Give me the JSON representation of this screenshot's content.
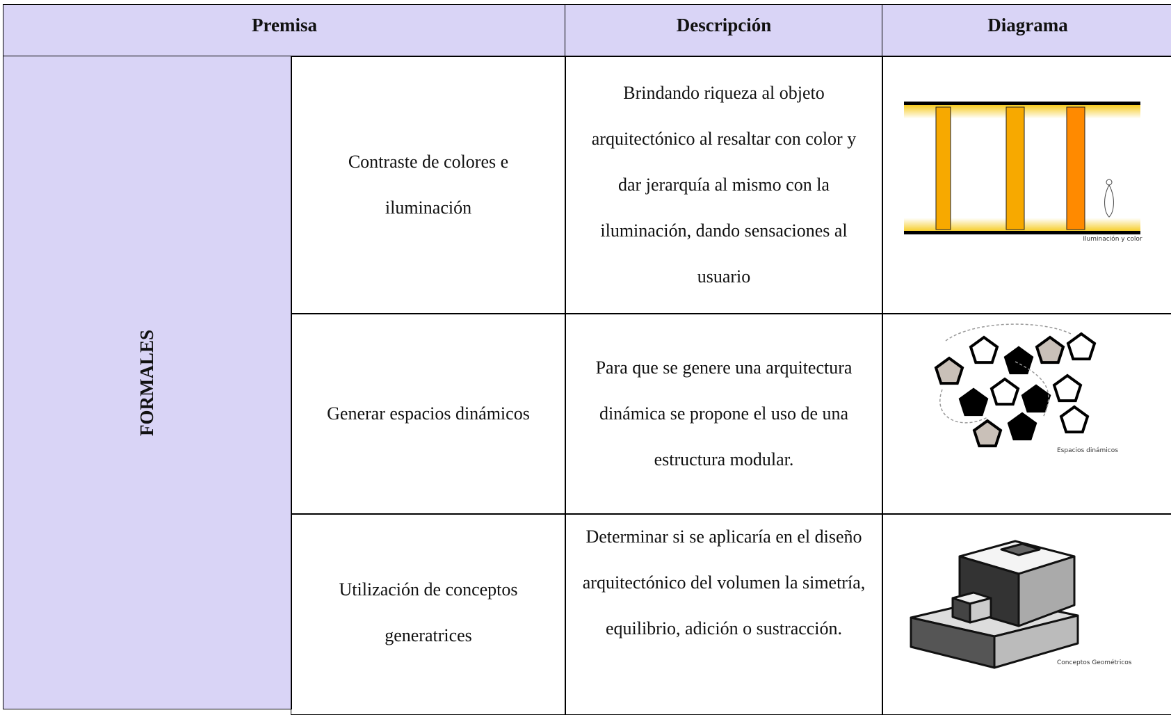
{
  "table": {
    "header": [
      "Premisa",
      "Descripción",
      "Diagrama"
    ],
    "group": "FORMALES",
    "rows": [
      [
        "Contraste de colores e iluminación",
        "Brindando riqueza al objeto arquitectónico al resaltar con color y dar jerarquía al mismo con la iluminación, dando sensaciones al usuario"
      ],
      [
        "Generar espacios dinámicos",
        "Para que se genere una arquitectura dinámica se propone el uso de una estructura modular."
      ],
      [
        "Utilización de conceptos generatrices",
        "Determinar si se aplicaría en el diseño arquitectónico del volumen la simetría, equilibrio, adición o sustracción."
      ]
    ],
    "diagram_labels": [
      "Iluminación y color",
      "Espacios dinámicos",
      "Conceptos Geométricos"
    ]
  }
}
